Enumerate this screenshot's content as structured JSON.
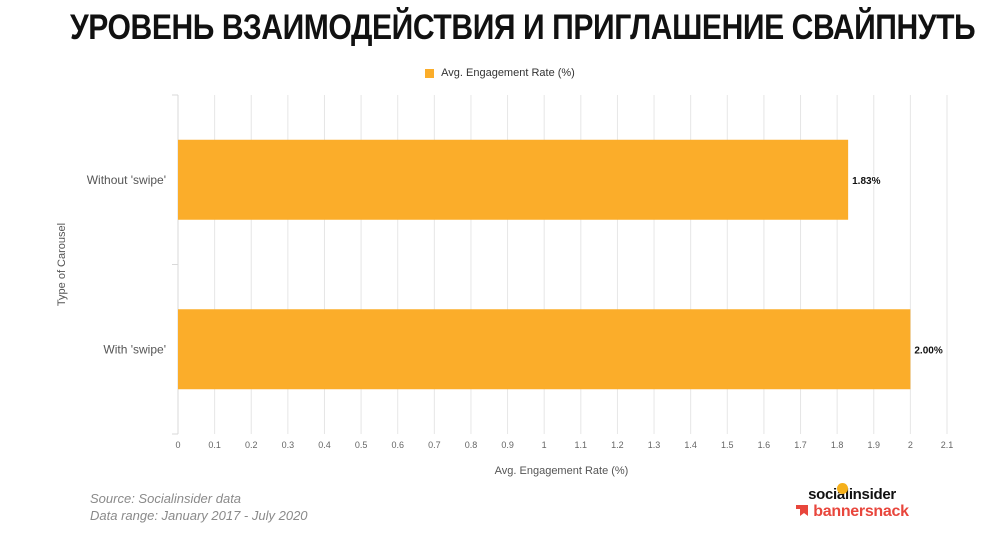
{
  "page": {
    "title": "УРОВЕНЬ ВЗАИМОДЕЙСТВИЯ И ПРИГЛАШЕНИЕ СВАЙПНУТЬ"
  },
  "footer": {
    "source": "Source: Socialinsider data",
    "range": "Data range: January 2017 - July 2020"
  },
  "logos": {
    "socialinsider": "socialinsider",
    "bannersnack": "bannersnack",
    "socialinsider_icon": "circle-dot-icon",
    "bannersnack_icon": "bannersnack-flag-icon"
  },
  "colors": {
    "bar": "#FBAD2A",
    "grid": "#e6e6e6",
    "text": "#555555",
    "brand_red": "#E8463C",
    "brand_yellow": "#F5B01B"
  },
  "chart_data": {
    "type": "bar",
    "orientation": "horizontal",
    "categories": [
      "Without 'swipe'",
      "With 'swipe'"
    ],
    "series": [
      {
        "name": "Avg. Engagement Rate (%)",
        "values": [
          1.83,
          2.0
        ]
      }
    ],
    "data_labels": [
      "1.83%",
      "2.00%"
    ],
    "xlabel": "Avg. Engagement Rate (%)",
    "ylabel": "Type of Carousel",
    "xlim": [
      0,
      2.1
    ],
    "xticks": [
      "0",
      "0.1",
      "0.2",
      "0.3",
      "0.4",
      "0.5",
      "0.6",
      "0.7",
      "0.8",
      "0.9",
      "1",
      "1.1",
      "1.2",
      "1.3",
      "1.4",
      "1.5",
      "1.6",
      "1.7",
      "1.8",
      "1.9",
      "2",
      "2.1"
    ],
    "grid": true,
    "legend_position": "top-center"
  }
}
